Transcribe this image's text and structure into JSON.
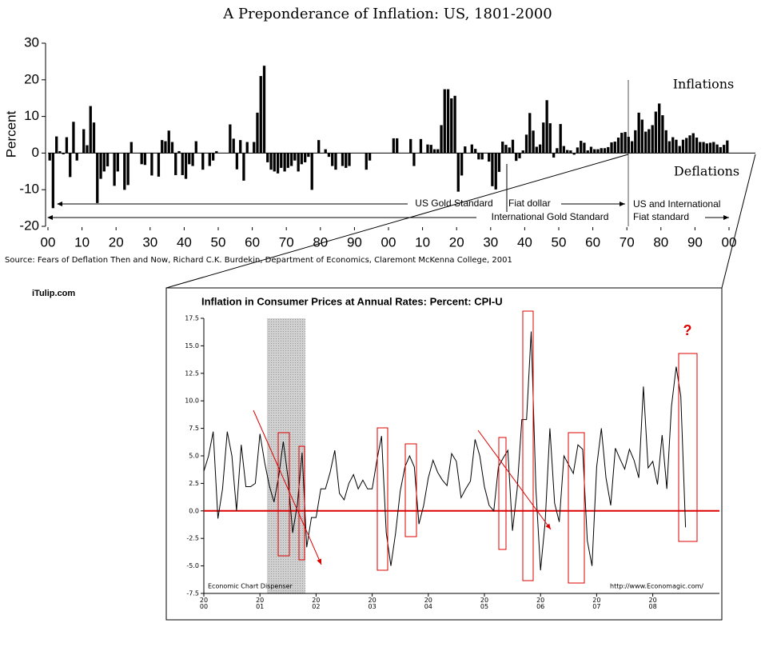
{
  "brand": "iTulip.com",
  "chart_data": [
    {
      "type": "bar",
      "title": "A Preponderance of Inflation: US, 1801-2000",
      "y_label": "Percent",
      "source": "Source: Fears of Deflation Then and Now, Richard C.K. Burdekin, Department of Economics, Claremont McKenna College, 2001",
      "annotations": [
        "Inflations",
        "Deflations",
        "US Gold Standard",
        "Fiat dollar",
        "US and International",
        "Fiat standard",
        "International Gold Standard"
      ],
      "color": "#000000",
      "x": [
        1801,
        1802,
        1803,
        1804,
        1805,
        1806,
        1807,
        1808,
        1809,
        1810,
        1811,
        1812,
        1813,
        1814,
        1815,
        1816,
        1817,
        1818,
        1819,
        1820,
        1821,
        1822,
        1823,
        1824,
        1825,
        1826,
        1827,
        1828,
        1829,
        1830,
        1831,
        1832,
        1833,
        1834,
        1835,
        1836,
        1837,
        1838,
        1839,
        1840,
        1841,
        1842,
        1843,
        1844,
        1845,
        1846,
        1847,
        1848,
        1849,
        1850,
        1851,
        1852,
        1853,
        1854,
        1855,
        1856,
        1857,
        1858,
        1859,
        1860,
        1861,
        1862,
        1863,
        1864,
        1865,
        1866,
        1867,
        1868,
        1869,
        1870,
        1871,
        1872,
        1873,
        1874,
        1875,
        1876,
        1877,
        1878,
        1879,
        1880,
        1881,
        1882,
        1883,
        1884,
        1885,
        1886,
        1887,
        1888,
        1889,
        1890,
        1891,
        1892,
        1893,
        1894,
        1895,
        1896,
        1897,
        1898,
        1899,
        1900,
        1901,
        1902,
        1903,
        1904,
        1905,
        1906,
        1907,
        1908,
        1909,
        1910,
        1911,
        1912,
        1913,
        1914,
        1915,
        1916,
        1917,
        1918,
        1919,
        1920,
        1921,
        1922,
        1923,
        1924,
        1925,
        1926,
        1927,
        1928,
        1929,
        1930,
        1931,
        1932,
        1933,
        1934,
        1935,
        1936,
        1937,
        1938,
        1939,
        1940,
        1941,
        1942,
        1943,
        1944,
        1945,
        1946,
        1947,
        1948,
        1949,
        1950,
        1951,
        1952,
        1953,
        1954,
        1955,
        1956,
        1957,
        1958,
        1959,
        1960,
        1961,
        1962,
        1963,
        1964,
        1965,
        1966,
        1967,
        1968,
        1969,
        1970,
        1971,
        1972,
        1973,
        1974,
        1975,
        1976,
        1977,
        1978,
        1979,
        1980,
        1981,
        1982,
        1983,
        1984,
        1985,
        1986,
        1987,
        1988,
        1989,
        1990,
        1991,
        1992,
        1993,
        1994,
        1995,
        1996,
        1997,
        1998,
        1999,
        2000
      ],
      "values": [
        -2.0,
        -15.0,
        4.5,
        0.5,
        -0.3,
        4.3,
        -6.5,
        8.5,
        -2.0,
        0.0,
        6.5,
        2.1,
        12.8,
        8.3,
        -13.6,
        -7.0,
        -5.0,
        -3.6,
        0.0,
        -8.9,
        -5.0,
        0.0,
        -10.0,
        -8.7,
        3.0,
        0.0,
        0.0,
        -3.0,
        -3.2,
        0.0,
        -6.1,
        0.0,
        -6.4,
        3.5,
        3.2,
        6.1,
        3.0,
        -6.0,
        0.5,
        -6.0,
        -7.0,
        -3.0,
        -3.5,
        3.2,
        0.0,
        -4.5,
        0.0,
        -3.5,
        -2.0,
        0.5,
        0.0,
        0.0,
        0.0,
        7.8,
        3.9,
        -4.4,
        3.5,
        -7.5,
        3.0,
        0.0,
        3.0,
        11.0,
        21.0,
        23.8,
        -2.5,
        -4.5,
        -5.0,
        -5.5,
        -4.0,
        -5.0,
        -4.0,
        -3.5,
        -2.0,
        -5.0,
        -3.0,
        -2.5,
        -1.0,
        -10.0,
        0.0,
        3.5,
        0.0,
        1.0,
        -1.0,
        -3.5,
        -4.5,
        0.0,
        -3.5,
        -4.0,
        -3.5,
        0.0,
        0.0,
        0.0,
        0.0,
        -4.5,
        -2.0,
        0.0,
        0.0,
        0.0,
        0.0,
        0.0,
        0.0,
        4.0,
        4.0,
        0.0,
        0.0,
        0.0,
        3.8,
        -3.5,
        0.0,
        3.8,
        0.0,
        2.3,
        2.2,
        1.0,
        1.0,
        7.6,
        17.4,
        17.4,
        14.9,
        15.6,
        -10.5,
        -6.1,
        1.8,
        0.0,
        2.3,
        1.1,
        -1.7,
        -1.7,
        0.0,
        -2.3,
        -9.0,
        -9.9,
        -5.1,
        3.1,
        2.2,
        1.5,
        3.6,
        -2.1,
        -1.4,
        0.7,
        5.0,
        10.9,
        6.1,
        1.7,
        2.3,
        8.3,
        14.4,
        8.1,
        -1.2,
        1.3,
        7.9,
        1.9,
        0.8,
        0.7,
        -0.4,
        1.5,
        3.3,
        2.8,
        0.7,
        1.7,
        1.0,
        1.0,
        1.3,
        1.3,
        1.6,
        2.9,
        3.1,
        4.2,
        5.5,
        5.7,
        4.4,
        3.2,
        6.2,
        11.0,
        9.1,
        5.8,
        6.5,
        7.6,
        11.3,
        13.5,
        10.3,
        6.2,
        3.2,
        4.3,
        3.6,
        1.9,
        3.6,
        4.1,
        4.8,
        5.4,
        4.2,
        3.0,
        3.0,
        2.6,
        2.8,
        3.0,
        2.3,
        1.6,
        2.2,
        3.4
      ],
      "xlim": [
        1800,
        2000
      ],
      "xticks": [
        {
          "value": 1800,
          "label": "00"
        },
        {
          "value": 1810,
          "label": "10"
        },
        {
          "value": 1820,
          "label": "20"
        },
        {
          "value": 1830,
          "label": "30"
        },
        {
          "value": 1840,
          "label": "40"
        },
        {
          "value": 1850,
          "label": "50"
        },
        {
          "value": 1860,
          "label": "60"
        },
        {
          "value": 1870,
          "label": "70"
        },
        {
          "value": 1880,
          "label": "80"
        },
        {
          "value": 1890,
          "label": "90"
        },
        {
          "value": 1900,
          "label": "00"
        },
        {
          "value": 1910,
          "label": "10"
        },
        {
          "value": 1920,
          "label": "20"
        },
        {
          "value": 1930,
          "label": "30"
        },
        {
          "value": 1940,
          "label": "40"
        },
        {
          "value": 1950,
          "label": "50"
        },
        {
          "value": 1960,
          "label": "60"
        },
        {
          "value": 1970,
          "label": "70"
        },
        {
          "value": 1980,
          "label": "80"
        },
        {
          "value": 1990,
          "label": "90"
        },
        {
          "value": 2000,
          "label": "00"
        }
      ],
      "ylim": [
        -20,
        30
      ],
      "yticks": [
        -20,
        -10,
        0,
        10,
        20,
        30
      ]
    },
    {
      "type": "line",
      "title": "Inflation in Consumer Prices at Annual Rates: Percent: CPI-U",
      "annotations": [
        "?",
        "Economic Chart Dispenser",
        "http://www.Economagic.com/"
      ],
      "color": "#000000",
      "zero_line_color": "#dd0000",
      "categories": [
        "2000",
        null,
        null,
        null,
        null,
        null,
        null,
        null,
        null,
        null,
        null,
        null,
        "2001",
        null,
        null,
        null,
        null,
        null,
        null,
        null,
        null,
        null,
        null,
        null,
        "2002",
        null,
        null,
        null,
        null,
        null,
        null,
        null,
        null,
        null,
        null,
        null,
        "2003",
        null,
        null,
        null,
        null,
        null,
        null,
        null,
        null,
        null,
        null,
        null,
        "2004",
        null,
        null,
        null,
        null,
        null,
        null,
        null,
        null,
        null,
        null,
        null,
        "2005",
        null,
        null,
        null,
        null,
        null,
        null,
        null,
        null,
        null,
        null,
        null,
        "2006",
        null,
        null,
        null,
        null,
        null,
        null,
        null,
        null,
        null,
        null,
        null,
        "2007",
        null,
        null,
        null,
        null,
        null,
        null,
        null,
        null,
        null,
        null,
        null,
        "2008",
        null,
        null,
        null,
        null,
        null,
        null,
        null
      ],
      "values": [
        3.6,
        5.0,
        7.2,
        -0.7,
        2.0,
        7.2,
        5.0,
        0.0,
        6.0,
        2.2,
        2.2,
        2.5,
        7.0,
        4.4,
        2.3,
        0.8,
        3.1,
        6.3,
        3.0,
        -2.0,
        0.6,
        5.3,
        -3.3,
        -0.6,
        -0.6,
        2.0,
        2.0,
        3.5,
        5.5,
        1.6,
        1.0,
        2.5,
        3.3,
        2.0,
        2.8,
        2.0,
        2.0,
        4.6,
        6.8,
        -2.0,
        -5.0,
        -2.0,
        1.8,
        4.0,
        5.0,
        4.0,
        -1.2,
        0.5,
        3.0,
        4.6,
        3.5,
        2.8,
        2.3,
        5.2,
        4.5,
        1.2,
        2.0,
        2.7,
        6.5,
        5.0,
        2.2,
        0.5,
        0.0,
        4.0,
        4.8,
        5.5,
        -1.8,
        2.0,
        8.3,
        8.3,
        16.3,
        2.0,
        -5.4,
        -1.0,
        7.5,
        0.7,
        -1.0,
        5.0,
        4.2,
        3.4,
        6.0,
        5.6,
        -2.7,
        -5.0,
        4.0,
        7.5,
        3.0,
        0.5,
        5.7,
        4.7,
        3.8,
        5.6,
        4.6,
        3.0,
        11.3,
        3.9,
        4.5,
        2.4,
        6.9,
        2.0,
        9.5,
        13.1,
        10.4,
        -1.5
      ],
      "ylim": [
        -7.5,
        17.5
      ],
      "yticks": [
        17.5,
        {
          "value": 15,
          "label": "15.0"
        },
        12.5,
        {
          "value": 10,
          "label": "10.0"
        },
        7.5,
        {
          "value": 5,
          "label": "5.0"
        },
        2.5,
        {
          "value": 0,
          "label": "0.0"
        },
        -2.5,
        {
          "value": -5,
          "label": "-5.0"
        },
        -7.5
      ]
    }
  ]
}
